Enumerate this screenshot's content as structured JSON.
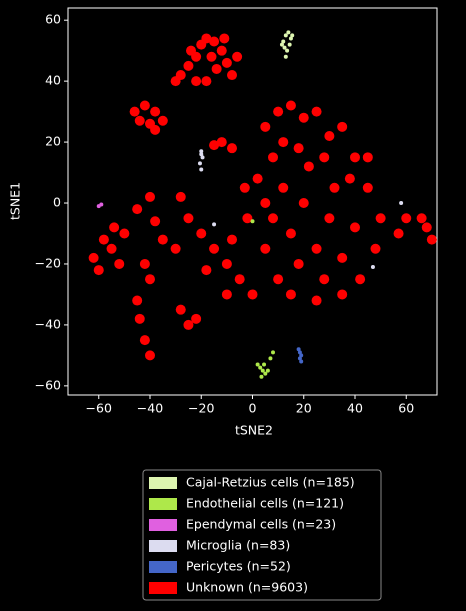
{
  "chart_data": {
    "type": "scatter",
    "x_label": "tSNE2",
    "y_label": "tSNE1",
    "xlim": [
      -72,
      72
    ],
    "ylim": [
      -63,
      64
    ],
    "xticks": [
      {
        "value": -60,
        "label": "−60"
      },
      {
        "value": -40,
        "label": "−40"
      },
      {
        "value": -20,
        "label": "−20"
      },
      0,
      20,
      40,
      60
    ],
    "yticks": [
      {
        "value": -60,
        "label": "−60"
      },
      {
        "value": -40,
        "label": "−40"
      },
      {
        "value": -20,
        "label": "−20"
      },
      0,
      20,
      40,
      60
    ],
    "legend": "bottom",
    "series": [
      {
        "name": "Cajal-Retzius cells (n=185)",
        "color": "#ddf5b0",
        "x": [
          12,
          13,
          14,
          15,
          12.5,
          14.5,
          13.5,
          11.5,
          15.5,
          13
        ],
        "y": [
          53,
          55,
          56,
          54,
          51,
          52,
          50,
          52,
          55,
          48
        ]
      },
      {
        "name": "Endothelial cells (n=121)",
        "color": "#aee84a",
        "x": [
          2,
          3,
          4,
          5,
          6,
          3.5,
          4.5,
          7,
          8,
          0
        ],
        "y": [
          -53,
          -54,
          -55,
          -56,
          -55,
          -57,
          -53,
          -51,
          -49,
          -6
        ]
      },
      {
        "name": "Ependymal cells (n=23)",
        "color": "#e060e0",
        "x": [
          -59,
          -60
        ],
        "y": [
          -0.5,
          -1
        ]
      },
      {
        "name": "Microglia (n=83)",
        "color": "#dcdcf0",
        "x": [
          -20,
          -20.5,
          -19.5,
          -20,
          -20,
          -15,
          47,
          58
        ],
        "y": [
          11,
          13,
          15,
          17,
          16,
          -7,
          -21,
          0
        ]
      },
      {
        "name": "Pericytes (n=52)",
        "color": "#4466c8",
        "x": [
          18,
          18.5,
          19,
          18.5,
          19
        ],
        "y": [
          -48,
          -49,
          -50,
          -51,
          -52
        ]
      },
      {
        "name": "Unknown (n=9603)",
        "color": "#ff0000",
        "x": [
          -28,
          -25,
          -22,
          -20,
          -18,
          -15,
          -12,
          -10,
          -8,
          -14,
          -18,
          -22,
          -16,
          -11,
          -24,
          -30,
          -6,
          -46,
          -42,
          -38,
          -35,
          -40,
          -44,
          -38,
          -12,
          -8,
          -15,
          -62,
          -58,
          -55,
          -52,
          -60,
          -50,
          -54,
          -45,
          -40,
          -38,
          -42,
          -40,
          -45,
          -44,
          -42,
          -40,
          -28,
          -25,
          -22,
          -28,
          -25,
          -20,
          -30,
          -35,
          -15,
          -18,
          -10,
          -5,
          -8,
          -3,
          2,
          -2,
          5,
          10,
          15,
          20,
          25,
          12,
          18,
          8,
          22,
          28,
          30,
          35,
          40,
          38,
          45,
          50,
          48,
          42,
          35,
          25,
          15,
          10,
          5,
          8,
          15,
          20,
          25,
          30,
          35,
          40,
          12,
          5,
          18,
          28,
          45,
          32,
          0,
          -10,
          66,
          68,
          70,
          57,
          60
        ],
        "y": [
          42,
          45,
          48,
          52,
          54,
          53,
          50,
          46,
          42,
          44,
          40,
          40,
          48,
          54,
          50,
          40,
          48,
          30,
          32,
          30,
          27,
          26,
          27,
          24,
          20,
          18,
          19,
          -18,
          -12,
          -15,
          -20,
          -22,
          -10,
          -8,
          -2,
          2,
          -6,
          -20,
          -25,
          -32,
          -38,
          -45,
          -50,
          -35,
          -40,
          -38,
          2,
          -5,
          -10,
          -15,
          -12,
          -15,
          -22,
          -20,
          -25,
          -12,
          5,
          8,
          -5,
          25,
          30,
          32,
          28,
          30,
          20,
          18,
          15,
          12,
          15,
          22,
          25,
          15,
          8,
          5,
          -5,
          -15,
          -25,
          -30,
          -32,
          -30,
          -25,
          -15,
          -5,
          -10,
          0,
          -15,
          -5,
          -18,
          -8,
          5,
          0,
          -20,
          -25,
          15,
          5,
          -30,
          -30,
          -5,
          -8,
          -12,
          -10,
          -5
        ]
      }
    ]
  }
}
